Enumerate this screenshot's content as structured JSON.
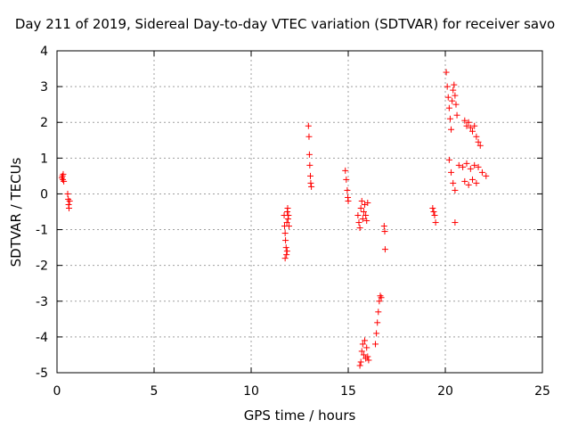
{
  "chart_data": {
    "type": "scatter",
    "title": "Day 211 of 2019, Sidereal Day-to-day VTEC variation (SDTVAR) for receiver savo",
    "xlabel": "GPS time / hours",
    "ylabel": "SDTVAR / TECUs",
    "xlim": [
      0,
      25
    ],
    "ylim": [
      -5,
      4
    ],
    "xticks": [
      0,
      5,
      10,
      15,
      20,
      25
    ],
    "yticks": [
      -5,
      -4,
      -3,
      -2,
      -1,
      0,
      1,
      2,
      3,
      4
    ],
    "grid": true,
    "marker": "+",
    "color": "#ff0000",
    "series": [
      {
        "name": "SDTVAR",
        "x": [
          0.25,
          0.28,
          0.3,
          0.32,
          0.35,
          0.55,
          0.58,
          0.6,
          0.62,
          0.65,
          11.7,
          11.72,
          11.75,
          11.77,
          11.8,
          11.82,
          11.84,
          11.86,
          11.88,
          11.9,
          11.92,
          11.95,
          11.75,
          11.85,
          12.95,
          12.98,
          13.0,
          13.02,
          13.05,
          13.07,
          13.1,
          14.85,
          14.9,
          14.95,
          14.98,
          15.0,
          15.5,
          15.55,
          15.6,
          15.65,
          15.7,
          15.75,
          15.8,
          15.85,
          15.9,
          15.95,
          16.0,
          15.6,
          15.65,
          15.7,
          15.75,
          15.8,
          15.85,
          15.9,
          15.95,
          16.0,
          16.05,
          16.4,
          16.45,
          16.5,
          16.55,
          16.6,
          16.65,
          16.7,
          16.85,
          16.88,
          16.9,
          19.35,
          19.4,
          19.45,
          19.5,
          20.05,
          20.1,
          20.15,
          20.2,
          20.25,
          20.3,
          20.35,
          20.4,
          20.45,
          20.5,
          20.55,
          20.6,
          20.2,
          20.3,
          20.4,
          20.5,
          20.5,
          20.7,
          20.9,
          21.1,
          21.3,
          21.5,
          21.7,
          21.9,
          22.1,
          21.0,
          21.1,
          21.2,
          21.3,
          21.4,
          21.5,
          21.6,
          21.7,
          21.8,
          21.0,
          21.2,
          21.4,
          21.6
        ],
        "y": [
          0.45,
          0.5,
          0.4,
          0.55,
          0.35,
          0.0,
          -0.15,
          -0.3,
          -0.4,
          -0.2,
          -0.6,
          -0.9,
          -1.1,
          -1.3,
          -1.5,
          -1.7,
          -0.8,
          -0.5,
          -0.4,
          -0.7,
          -0.6,
          -0.9,
          -1.8,
          -1.6,
          1.9,
          1.6,
          1.1,
          0.8,
          0.5,
          0.3,
          0.2,
          0.65,
          0.4,
          0.1,
          -0.1,
          -0.2,
          -0.6,
          -0.8,
          -0.95,
          -0.4,
          -0.2,
          -0.7,
          -0.5,
          -0.3,
          -0.6,
          -0.75,
          -0.25,
          -4.8,
          -4.7,
          -4.4,
          -4.2,
          -4.5,
          -4.1,
          -4.6,
          -4.3,
          -4.55,
          -4.65,
          -4.2,
          -3.9,
          -3.6,
          -3.3,
          -3.0,
          -2.85,
          -2.9,
          -0.9,
          -1.05,
          -1.55,
          -0.4,
          -0.5,
          -0.6,
          -0.8,
          3.4,
          3.0,
          2.7,
          2.4,
          2.1,
          1.8,
          2.6,
          2.9,
          3.05,
          2.75,
          2.5,
          2.2,
          0.95,
          0.6,
          0.3,
          0.1,
          -0.8,
          0.8,
          0.75,
          0.85,
          0.7,
          0.8,
          0.75,
          0.6,
          0.5,
          2.05,
          1.9,
          2.0,
          1.85,
          1.75,
          1.9,
          1.6,
          1.45,
          1.35,
          0.35,
          0.25,
          0.4,
          0.3
        ]
      }
    ]
  }
}
